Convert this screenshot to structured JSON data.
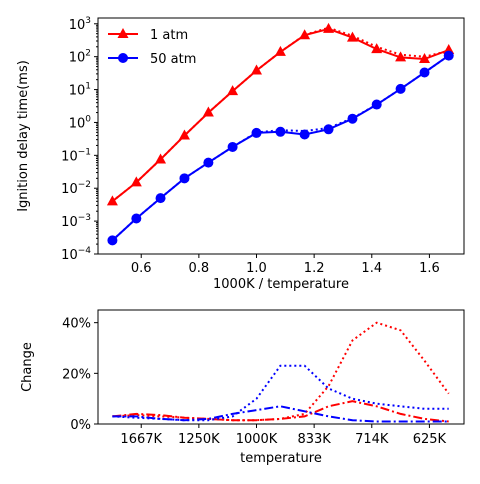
{
  "chart_data": [
    {
      "type": "line",
      "xlabel": "1000K / temperature",
      "ylabel": "Ignition delay time(ms)",
      "xlim": [
        0.45,
        1.72
      ],
      "ylim": [
        0.0001,
        1500
      ],
      "yscale": "log",
      "xticks": [
        0.6,
        0.8,
        1.0,
        1.2,
        1.4,
        1.6
      ],
      "xtick_labels": [
        "0.6",
        "0.8",
        "1.0",
        "1.2",
        "1.4",
        "1.6"
      ],
      "yticks": [
        0.0001,
        0.001,
        0.01,
        0.1,
        1,
        10,
        100,
        1000
      ],
      "ytick_labels": [
        {
          "base": "10",
          "exp": "−4"
        },
        {
          "base": "10",
          "exp": "−3"
        },
        {
          "base": "10",
          "exp": "−2"
        },
        {
          "base": "10",
          "exp": "−1"
        },
        {
          "base": "10",
          "exp": "0"
        },
        {
          "base": "10",
          "exp": "1"
        },
        {
          "base": "10",
          "exp": "2"
        },
        {
          "base": "10",
          "exp": "3"
        }
      ],
      "legend": "top-left",
      "x": [
        0.5,
        0.583,
        0.667,
        0.75,
        0.833,
        0.917,
        1.0,
        1.083,
        1.167,
        1.25,
        1.333,
        1.417,
        1.5,
        1.583,
        1.667
      ],
      "series": [
        {
          "name": "1 atm",
          "color": "#ff0000",
          "marker": "triangle",
          "values": [
            0.004,
            0.015,
            0.075,
            0.4,
            2.0,
            9.0,
            38,
            140,
            450,
            700,
            380,
            170,
            95,
            85,
            160
          ],
          "dotted_values": [
            0.004,
            0.015,
            0.075,
            0.4,
            2.0,
            9.0,
            38,
            140,
            460,
            760,
            430,
            200,
            115,
            100,
            150
          ]
        },
        {
          "name": "50 atm",
          "color": "#0000ff",
          "marker": "circle",
          "values": [
            0.00026,
            0.0012,
            0.005,
            0.02,
            0.06,
            0.18,
            0.48,
            0.52,
            0.43,
            0.62,
            1.3,
            3.5,
            10.5,
            33,
            108
          ],
          "dotted_values": [
            0.00026,
            0.0012,
            0.005,
            0.02,
            0.06,
            0.18,
            0.5,
            0.58,
            0.55,
            0.68,
            1.35,
            3.5,
            10.5,
            33,
            108
          ]
        }
      ]
    },
    {
      "type": "line",
      "xlabel": "temperature",
      "ylabel": "Change",
      "xlim": [
        0.45,
        1.72
      ],
      "ylim": [
        0,
        45
      ],
      "xticks": [
        0.6,
        0.8,
        1.0,
        1.2,
        1.4,
        1.6
      ],
      "xtick_labels": [
        "1667K",
        "1250K",
        "1000K",
        "833K",
        "714K",
        "625K"
      ],
      "yticks": [
        0,
        20,
        40
      ],
      "ytick_labels": [
        "0%",
        "20%",
        "40%"
      ],
      "x": [
        0.5,
        0.583,
        0.667,
        0.75,
        0.833,
        0.917,
        1.0,
        1.083,
        1.167,
        1.25,
        1.333,
        1.417,
        1.5,
        1.583,
        1.667
      ],
      "series": [
        {
          "color": "#ff0000",
          "style": "dotted",
          "values": [
            3,
            3.5,
            3,
            2.5,
            2,
            1.5,
            1.5,
            2,
            4,
            15,
            33,
            40,
            37,
            25,
            12
          ]
        },
        {
          "color": "#ff0000",
          "style": "dashdot",
          "values": [
            3,
            4,
            3.5,
            2.5,
            2,
            1.5,
            1.5,
            2,
            3,
            7,
            9,
            7,
            4,
            2,
            1
          ]
        },
        {
          "color": "#0000ff",
          "style": "dotted",
          "values": [
            3,
            2.5,
            2,
            1.5,
            1.5,
            3,
            10,
            23,
            23,
            14,
            10,
            8,
            7,
            6,
            6
          ]
        },
        {
          "color": "#0000ff",
          "style": "dashdot",
          "values": [
            3,
            3,
            2,
            1.5,
            2,
            4,
            5.5,
            7,
            5,
            3,
            1.5,
            1,
            1,
            1,
            1
          ]
        }
      ]
    }
  ]
}
